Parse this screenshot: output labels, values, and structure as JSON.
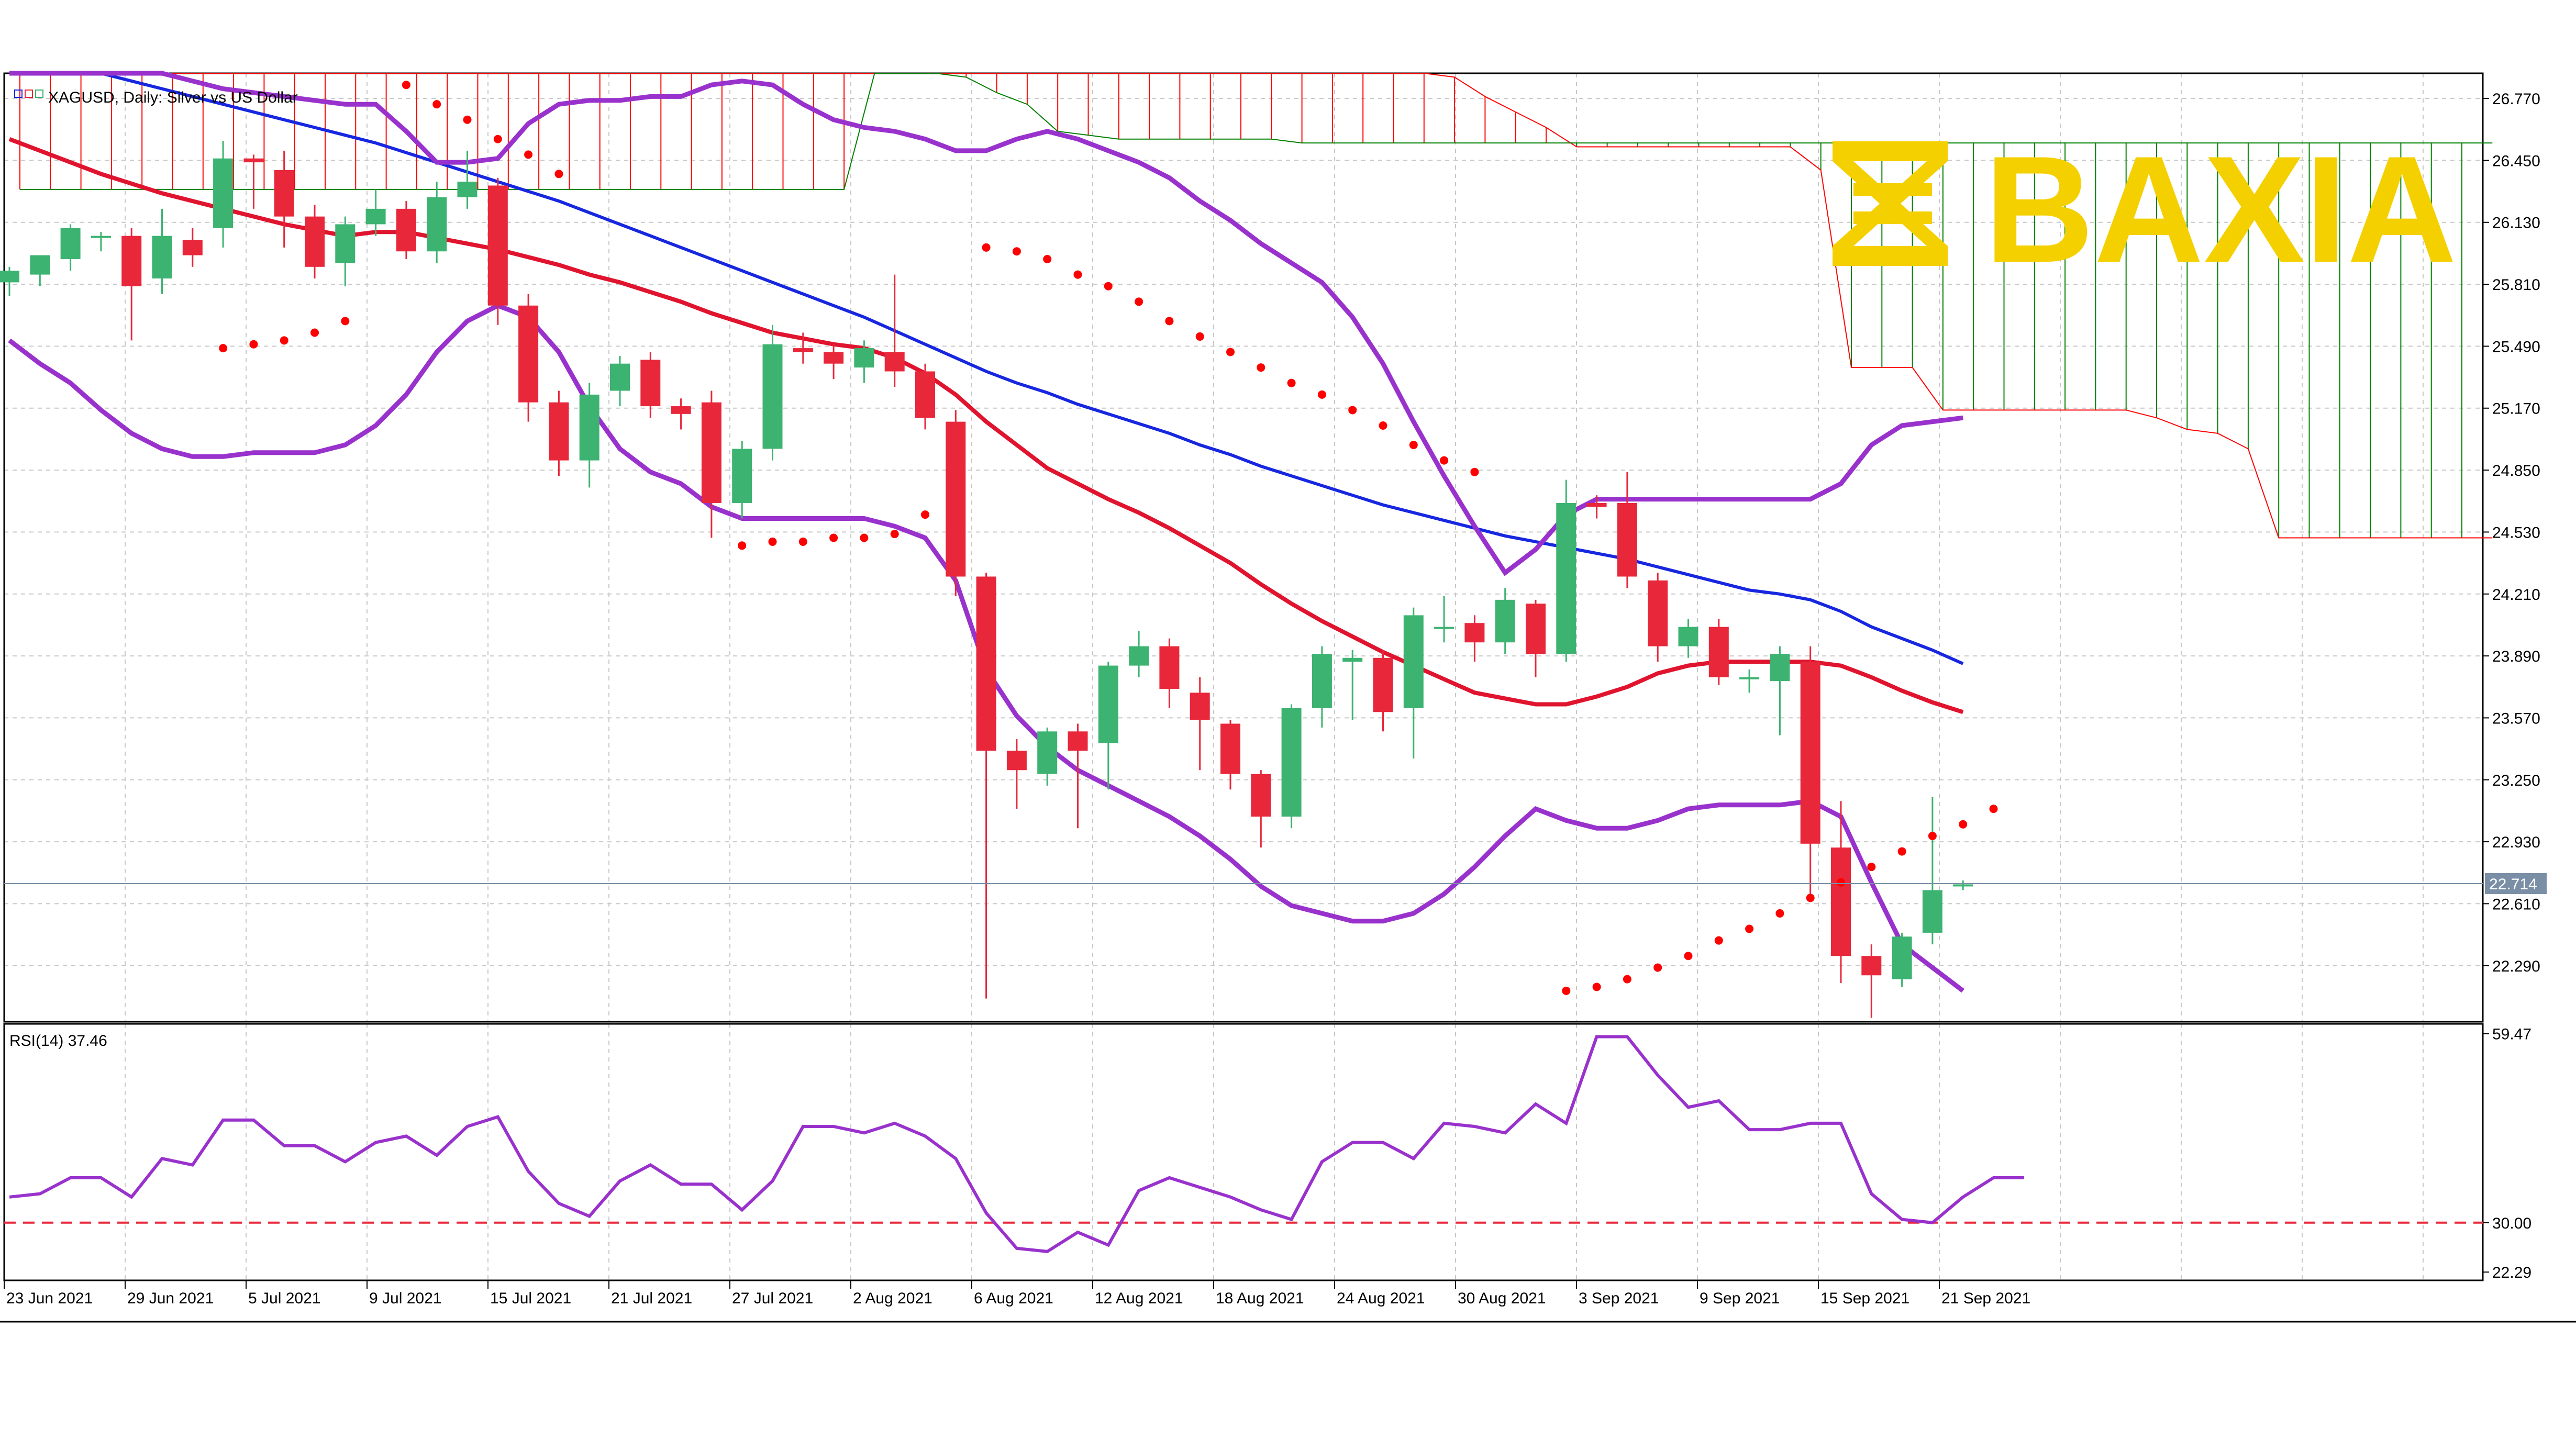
{
  "header": {
    "symbol_text": "XAGUSD, Daily:  Silver vs US Dollar"
  },
  "logo": {
    "text": "BAXIA",
    "color": "#F5D000"
  },
  "colors": {
    "bull": "#3CB371",
    "bear": "#E8273A",
    "sma_red": "#E0142E",
    "sma_blue": "#1727E0",
    "bollinger": "#9932CC",
    "sar": "#FF0000",
    "kumo_top": "#FF0000",
    "kumo_bottom": "#008000",
    "kijun": "#8B4513",
    "tenkan": "#0000FF",
    "chikou": "#3CB371",
    "rsi": "#9932CC",
    "rsi_level": "#E8273A",
    "grid": "#C8C8C8",
    "price_line": "#7A8FA6"
  },
  "chart_data": [
    {
      "type": "candlestick",
      "title": "XAGUSD, Daily:  Silver vs US Dollar",
      "ylim": [
        22.0,
        26.9
      ],
      "y_ticks": [
        "26.770",
        "26.450",
        "26.130",
        "25.810",
        "25.490",
        "25.170",
        "24.850",
        "24.530",
        "24.210",
        "23.890",
        "23.570",
        "23.250",
        "22.930",
        "22.610",
        "22.290"
      ],
      "current_price": "22.714",
      "current_price_value": 22.714,
      "x_labels": [
        "23 Jun 2021",
        "29 Jun 2021",
        "5 Jul 2021",
        "9 Jul 2021",
        "15 Jul 2021",
        "21 Jul 2021",
        "27 Jul 2021",
        "2 Aug 2021",
        "6 Aug 2021",
        "12 Aug 2021",
        "18 Aug 2021",
        "24 Aug 2021",
        "30 Aug 2021",
        "3 Sep 2021",
        "9 Sep 2021",
        "15 Sep 2021",
        "21 Sep 2021"
      ],
      "candles": [
        [
          25.82,
          25.88,
          25.75,
          25.9
        ],
        [
          25.86,
          25.96,
          25.8,
          25.92
        ],
        [
          25.94,
          26.1,
          25.88,
          26.12
        ],
        [
          26.06,
          26.06,
          25.98,
          26.08
        ],
        [
          26.06,
          25.8,
          25.52,
          26.1
        ],
        [
          25.84,
          26.06,
          25.76,
          26.2
        ],
        [
          26.04,
          25.96,
          25.9,
          26.1
        ],
        [
          26.1,
          26.46,
          26.0,
          26.55
        ],
        [
          26.46,
          26.44,
          26.2,
          26.48
        ],
        [
          26.4,
          26.16,
          26.0,
          26.5
        ],
        [
          26.16,
          25.9,
          25.84,
          26.22
        ],
        [
          25.92,
          26.12,
          25.8,
          26.16
        ],
        [
          26.12,
          26.2,
          26.06,
          26.3
        ],
        [
          26.2,
          25.98,
          25.94,
          26.24
        ],
        [
          25.98,
          26.26,
          25.92,
          26.34
        ],
        [
          26.26,
          26.34,
          26.2,
          26.5
        ],
        [
          26.32,
          25.7,
          25.6,
          26.36
        ],
        [
          25.7,
          25.2,
          25.1,
          25.76
        ],
        [
          25.2,
          24.9,
          24.82,
          25.26
        ],
        [
          24.9,
          25.24,
          24.76,
          25.3
        ],
        [
          25.26,
          25.4,
          25.18,
          25.44
        ],
        [
          25.42,
          25.18,
          25.12,
          25.46
        ],
        [
          25.18,
          25.14,
          25.06,
          25.22
        ],
        [
          25.2,
          24.68,
          24.5,
          25.26
        ],
        [
          24.68,
          24.96,
          24.6,
          25.0
        ],
        [
          24.96,
          25.5,
          24.9,
          25.6
        ],
        [
          25.48,
          25.46,
          25.4,
          25.56
        ],
        [
          25.46,
          25.4,
          25.32,
          25.5
        ],
        [
          25.38,
          25.48,
          25.3,
          25.52
        ],
        [
          25.46,
          25.36,
          25.28,
          25.86
        ],
        [
          25.36,
          25.12,
          25.06,
          25.4
        ],
        [
          25.1,
          24.3,
          24.2,
          25.16
        ],
        [
          24.3,
          23.4,
          22.12,
          24.32
        ],
        [
          23.4,
          23.3,
          23.1,
          23.46
        ],
        [
          23.28,
          23.5,
          23.22,
          23.52
        ],
        [
          23.5,
          23.4,
          23.0,
          23.54
        ],
        [
          23.44,
          23.84,
          23.2,
          23.86
        ],
        [
          23.84,
          23.94,
          23.78,
          24.02
        ],
        [
          23.94,
          23.72,
          23.62,
          23.98
        ],
        [
          23.7,
          23.56,
          23.3,
          23.78
        ],
        [
          23.54,
          23.28,
          23.2,
          23.56
        ],
        [
          23.28,
          23.06,
          22.9,
          23.3
        ],
        [
          23.06,
          23.62,
          23.0,
          23.64
        ],
        [
          23.62,
          23.9,
          23.52,
          23.94
        ],
        [
          23.86,
          23.88,
          23.56,
          23.92
        ],
        [
          23.88,
          23.6,
          23.5,
          23.92
        ],
        [
          23.62,
          24.1,
          23.36,
          24.14
        ],
        [
          24.04,
          24.04,
          23.96,
          24.2
        ],
        [
          24.06,
          23.96,
          23.86,
          24.1
        ],
        [
          23.96,
          24.18,
          23.9,
          24.24
        ],
        [
          24.16,
          23.9,
          23.78,
          24.18
        ],
        [
          23.9,
          24.68,
          23.86,
          24.8
        ],
        [
          24.68,
          24.66,
          24.6,
          24.72
        ],
        [
          24.68,
          24.3,
          24.24,
          24.84
        ],
        [
          24.28,
          23.94,
          23.86,
          24.32
        ],
        [
          23.94,
          24.04,
          23.88,
          24.08
        ],
        [
          24.04,
          23.78,
          23.74,
          24.08
        ],
        [
          23.78,
          23.78,
          23.7,
          23.82
        ],
        [
          23.76,
          23.9,
          23.48,
          23.94
        ],
        [
          23.86,
          22.92,
          22.64,
          23.94
        ],
        [
          22.9,
          22.34,
          22.2,
          23.14
        ],
        [
          22.34,
          22.24,
          22.02,
          22.4
        ],
        [
          22.22,
          22.44,
          22.18,
          22.46
        ],
        [
          22.46,
          22.68,
          22.4,
          23.16
        ],
        [
          22.7,
          22.71,
          22.68,
          22.73
        ]
      ],
      "ma_red": [
        26.56,
        26.5,
        26.44,
        26.38,
        26.33,
        26.28,
        26.24,
        26.2,
        26.16,
        26.12,
        26.09,
        26.06,
        26.08,
        26.08,
        26.05,
        26.02,
        25.99,
        25.95,
        25.91,
        25.86,
        25.82,
        25.77,
        25.72,
        25.66,
        25.61,
        25.56,
        25.53,
        25.5,
        25.48,
        25.43,
        25.35,
        25.24,
        25.1,
        24.98,
        24.86,
        24.78,
        24.7,
        24.63,
        24.55,
        24.46,
        24.37,
        24.26,
        24.16,
        24.07,
        23.99,
        23.91,
        23.84,
        23.77,
        23.7,
        23.67,
        23.64,
        23.64,
        23.68,
        23.73,
        23.8,
        23.84,
        23.86,
        23.86,
        23.86,
        23.86,
        23.84,
        23.78,
        23.71,
        23.65,
        23.6
      ],
      "ma_blue": [
        27.02,
        26.98,
        26.94,
        26.9,
        26.86,
        26.82,
        26.78,
        26.74,
        26.7,
        26.66,
        26.62,
        26.58,
        26.54,
        26.49,
        26.44,
        26.39,
        26.34,
        26.29,
        26.24,
        26.18,
        26.12,
        26.06,
        26.0,
        25.94,
        25.88,
        25.82,
        25.76,
        25.7,
        25.64,
        25.57,
        25.5,
        25.43,
        25.36,
        25.3,
        25.25,
        25.19,
        25.14,
        25.09,
        25.04,
        24.98,
        24.93,
        24.87,
        24.82,
        24.77,
        24.72,
        24.67,
        24.63,
        24.59,
        24.55,
        24.51,
        24.48,
        24.45,
        24.42,
        24.39,
        24.35,
        24.31,
        24.27,
        24.23,
        24.21,
        24.18,
        24.12,
        24.04,
        23.98,
        23.92,
        23.85
      ],
      "bb_upper": [
        27.18,
        27.12,
        27.06,
        27.0,
        26.95,
        26.9,
        26.86,
        26.82,
        26.8,
        26.78,
        26.76,
        26.74,
        26.74,
        26.6,
        26.44,
        26.44,
        26.46,
        26.64,
        26.74,
        26.76,
        26.76,
        26.78,
        26.78,
        26.84,
        26.86,
        26.84,
        26.74,
        26.66,
        26.62,
        26.6,
        26.56,
        26.5,
        26.5,
        26.56,
        26.6,
        26.56,
        26.5,
        26.44,
        26.36,
        26.24,
        26.14,
        26.02,
        25.92,
        25.82,
        25.64,
        25.4,
        25.1,
        24.82,
        24.56,
        24.32,
        24.44,
        24.62,
        24.7,
        24.7,
        24.7,
        24.7,
        24.7,
        24.7,
        24.7,
        24.7,
        24.78,
        24.98,
        25.08,
        25.1,
        25.12
      ],
      "bb_lower": [
        25.52,
        25.4,
        25.3,
        25.16,
        25.04,
        24.96,
        24.92,
        24.92,
        24.94,
        24.94,
        24.94,
        24.98,
        25.08,
        25.24,
        25.46,
        25.62,
        25.7,
        25.64,
        25.46,
        25.18,
        24.96,
        24.84,
        24.78,
        24.66,
        24.6,
        24.6,
        24.6,
        24.6,
        24.6,
        24.56,
        24.5,
        24.28,
        23.82,
        23.58,
        23.42,
        23.3,
        23.22,
        23.14,
        23.06,
        22.96,
        22.84,
        22.7,
        22.6,
        22.56,
        22.52,
        22.52,
        22.56,
        22.66,
        22.8,
        22.96,
        23.1,
        23.04,
        23.0,
        23.0,
        23.04,
        23.1,
        23.12,
        23.12,
        23.12,
        23.14,
        23.06,
        22.72,
        22.4,
        22.28,
        22.16
      ],
      "sar": [
        null,
        null,
        null,
        null,
        null,
        null,
        null,
        25.48,
        25.5,
        25.52,
        25.56,
        25.62,
        26.96,
        26.84,
        26.74,
        26.66,
        26.56,
        26.48,
        26.38,
        null,
        null,
        null,
        null,
        null,
        24.46,
        24.48,
        24.48,
        24.5,
        24.5,
        24.52,
        24.62,
        null,
        26.0,
        25.98,
        25.94,
        25.86,
        25.8,
        25.72,
        25.62,
        25.54,
        25.46,
        25.38,
        25.3,
        25.24,
        25.16,
        25.08,
        24.98,
        24.9,
        24.84,
        null,
        null,
        22.16,
        22.18,
        22.22,
        22.28,
        22.34,
        22.42,
        22.48,
        22.56,
        22.64,
        22.72,
        22.8,
        22.88,
        22.96,
        23.02,
        23.1
      ],
      "sar_offset_note": "",
      "kumo_top": [
        26.96,
        26.96,
        26.96,
        26.96,
        26.96,
        26.96,
        26.96,
        26.96,
        26.96,
        26.96,
        26.96,
        26.96,
        26.96,
        26.96,
        26.96,
        26.96,
        26.96,
        26.96,
        26.96,
        26.96,
        26.96,
        26.96,
        26.96,
        26.96,
        26.96,
        26.96,
        26.96,
        26.96,
        26.92,
        26.92,
        26.92,
        26.92,
        26.92,
        26.92,
        26.92,
        26.92,
        26.92,
        26.92,
        26.92,
        26.92,
        26.92,
        26.92,
        26.92,
        26.92,
        26.92,
        26.92,
        26.92,
        26.88,
        26.78,
        26.7,
        26.62,
        26.52,
        26.52,
        26.52,
        26.52,
        26.52,
        26.52,
        26.52,
        26.52,
        26.4,
        25.38,
        25.38,
        25.38,
        25.16,
        25.16,
        25.16,
        25.16,
        25.16,
        25.16,
        25.16,
        25.12,
        25.06,
        25.04,
        24.96,
        24.5,
        24.5,
        24.5,
        24.5,
        24.5,
        24.5,
        24.5,
        24.5
      ],
      "kumo_bottom": [
        26.3,
        26.3,
        26.3,
        26.3,
        26.3,
        26.3,
        26.3,
        26.3,
        26.3,
        26.3,
        26.3,
        26.3,
        26.3,
        26.3,
        26.3,
        26.3,
        26.3,
        26.3,
        26.3,
        26.3,
        26.3,
        26.3,
        26.3,
        26.3,
        26.3,
        26.3,
        26.3,
        26.3,
        26.9,
        26.9,
        26.9,
        26.88,
        26.8,
        26.74,
        26.6,
        26.58,
        26.56,
        26.56,
        26.56,
        26.56,
        26.56,
        26.56,
        26.54,
        26.54,
        26.54,
        26.54,
        26.54,
        26.54,
        26.54,
        26.54,
        26.54,
        26.54,
        26.54,
        26.54,
        26.54,
        26.54,
        26.54,
        26.54,
        26.54,
        26.54,
        26.54,
        26.54,
        26.54,
        26.54,
        26.54,
        26.54,
        26.54,
        26.54,
        26.54,
        26.54,
        26.54,
        26.54,
        26.54,
        26.54,
        26.54,
        26.54,
        26.54,
        26.54,
        26.54,
        26.54,
        26.54,
        26.54
      ],
      "kijun": [],
      "tenkan": [],
      "chikou": []
    },
    {
      "type": "line",
      "title": "RSI(14) 37.46",
      "ylim": [
        21.0,
        61.0
      ],
      "y_ticks": [
        "59.47",
        "30.00",
        "22.29"
      ],
      "level": 30.0,
      "values": [
        34.0,
        34.5,
        37.0,
        37.0,
        34.0,
        40.0,
        39.0,
        46.0,
        46.0,
        42.0,
        42.0,
        39.5,
        42.5,
        43.5,
        40.5,
        45.0,
        46.5,
        38.0,
        33.0,
        31.0,
        36.5,
        39.0,
        36.0,
        36.0,
        32.0,
        36.5,
        45.0,
        45.0,
        44.0,
        45.5,
        43.5,
        40.0,
        31.5,
        26.0,
        25.5,
        28.5,
        26.5,
        35.0,
        37.0,
        35.5,
        34.0,
        32.0,
        30.5,
        39.5,
        42.5,
        42.5,
        40.0,
        45.5,
        45.0,
        44.0,
        48.5,
        45.5,
        59.0,
        59.0,
        53.0,
        48.0,
        49.0,
        44.5,
        44.5,
        45.5,
        45.5,
        34.5,
        30.5,
        30.0,
        34.0,
        37.0,
        37.0
      ]
    }
  ]
}
